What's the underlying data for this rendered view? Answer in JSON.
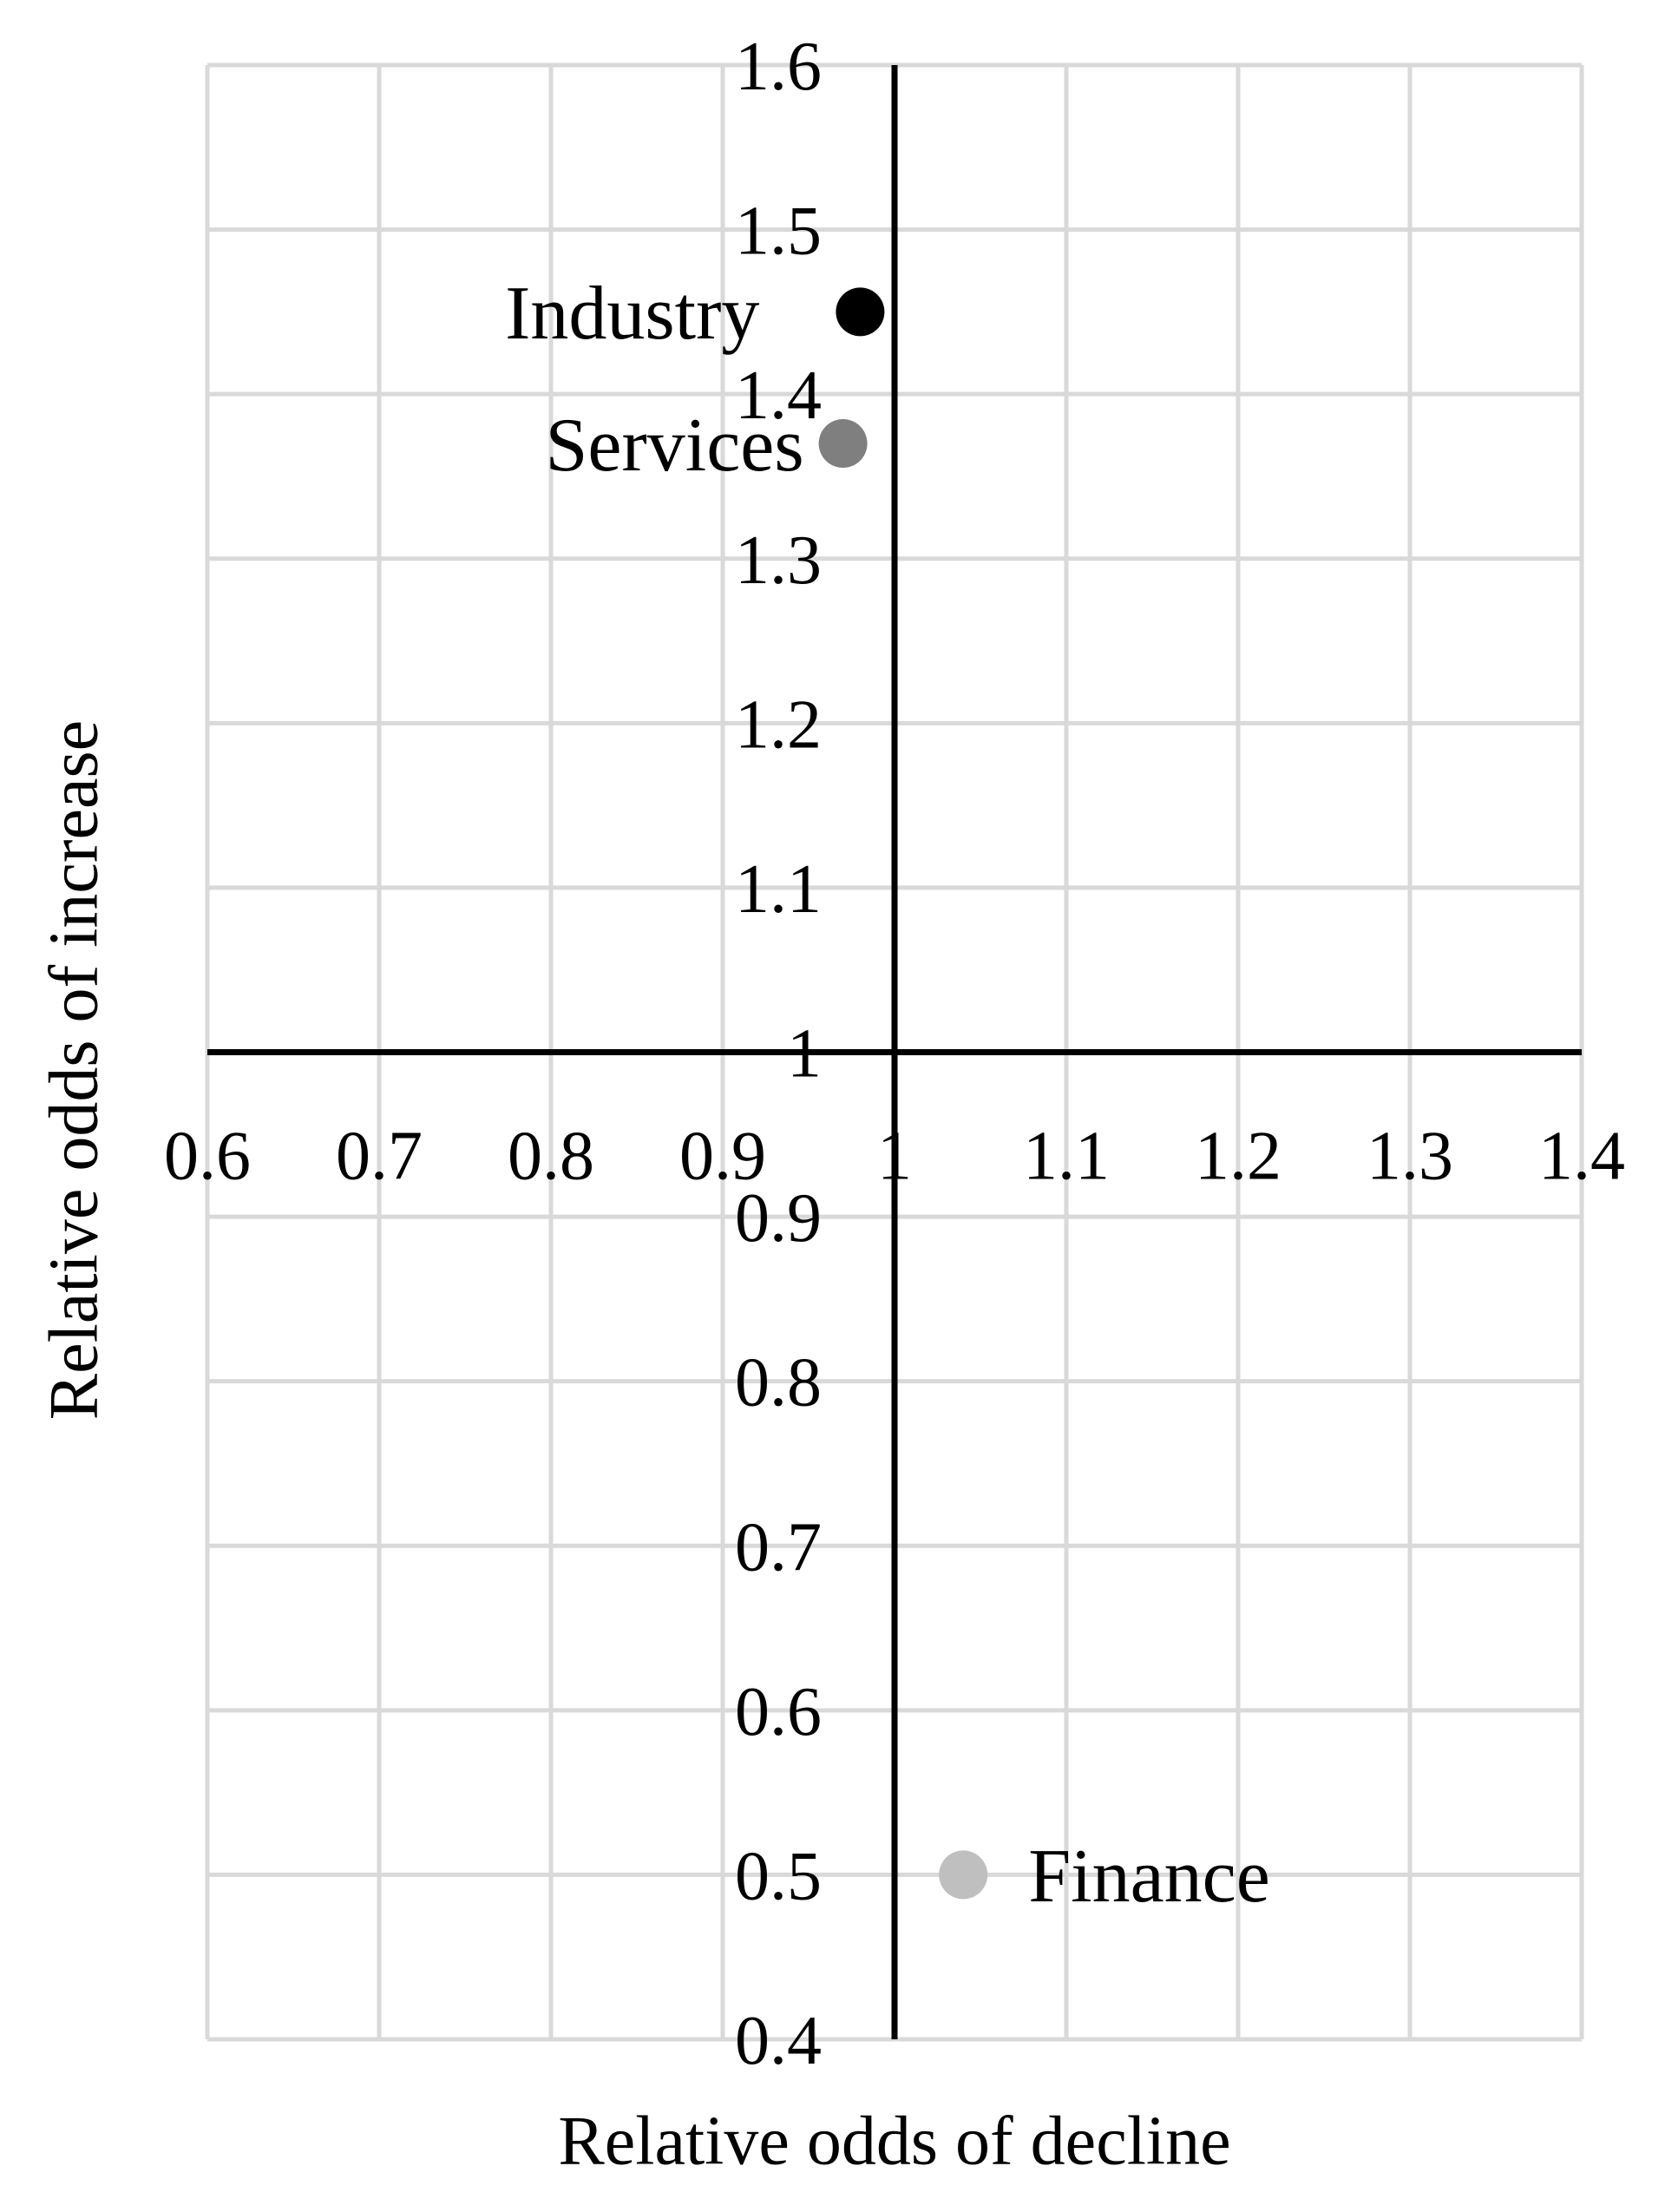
{
  "chart_data": {
    "type": "scatter",
    "title": "",
    "xlabel": "Relative odds of decline",
    "ylabel": "Relative odds of increase",
    "xlim": [
      0.6,
      1.4
    ],
    "ylim": [
      0.4,
      1.6
    ],
    "x_tick_labels": [
      "0.6",
      "0.7",
      "0.8",
      "0.9",
      "1",
      "1.1",
      "1.2",
      "1.3",
      "1.4"
    ],
    "y_tick_labels": [
      "1.6",
      "1.5",
      "1.4",
      "1.3",
      "1.2",
      "1.1",
      "1",
      "0.9",
      "0.8",
      "0.7",
      "0.6",
      "0.5",
      "0.4"
    ],
    "grid": true,
    "legend": "none",
    "axes_cross_at": {
      "x": 1,
      "y": 1
    },
    "series": [
      {
        "name": "Industry",
        "x": 0.98,
        "y": 1.45,
        "color": "#000000",
        "label_anchor": "end",
        "label_dx": -116
      },
      {
        "name": "Services",
        "x": 0.97,
        "y": 1.37,
        "color": "#7f7f7f",
        "label_anchor": "end",
        "label_dx": -45
      },
      {
        "name": "Finance",
        "x": 1.04,
        "y": 0.5,
        "color": "#bfbfbf",
        "label_anchor": "start",
        "label_dx": 75
      }
    ],
    "colors": {
      "background": "#ffffff",
      "gridline": "#d9d9d9",
      "axis_line": "#000000",
      "text": "#000000"
    }
  }
}
